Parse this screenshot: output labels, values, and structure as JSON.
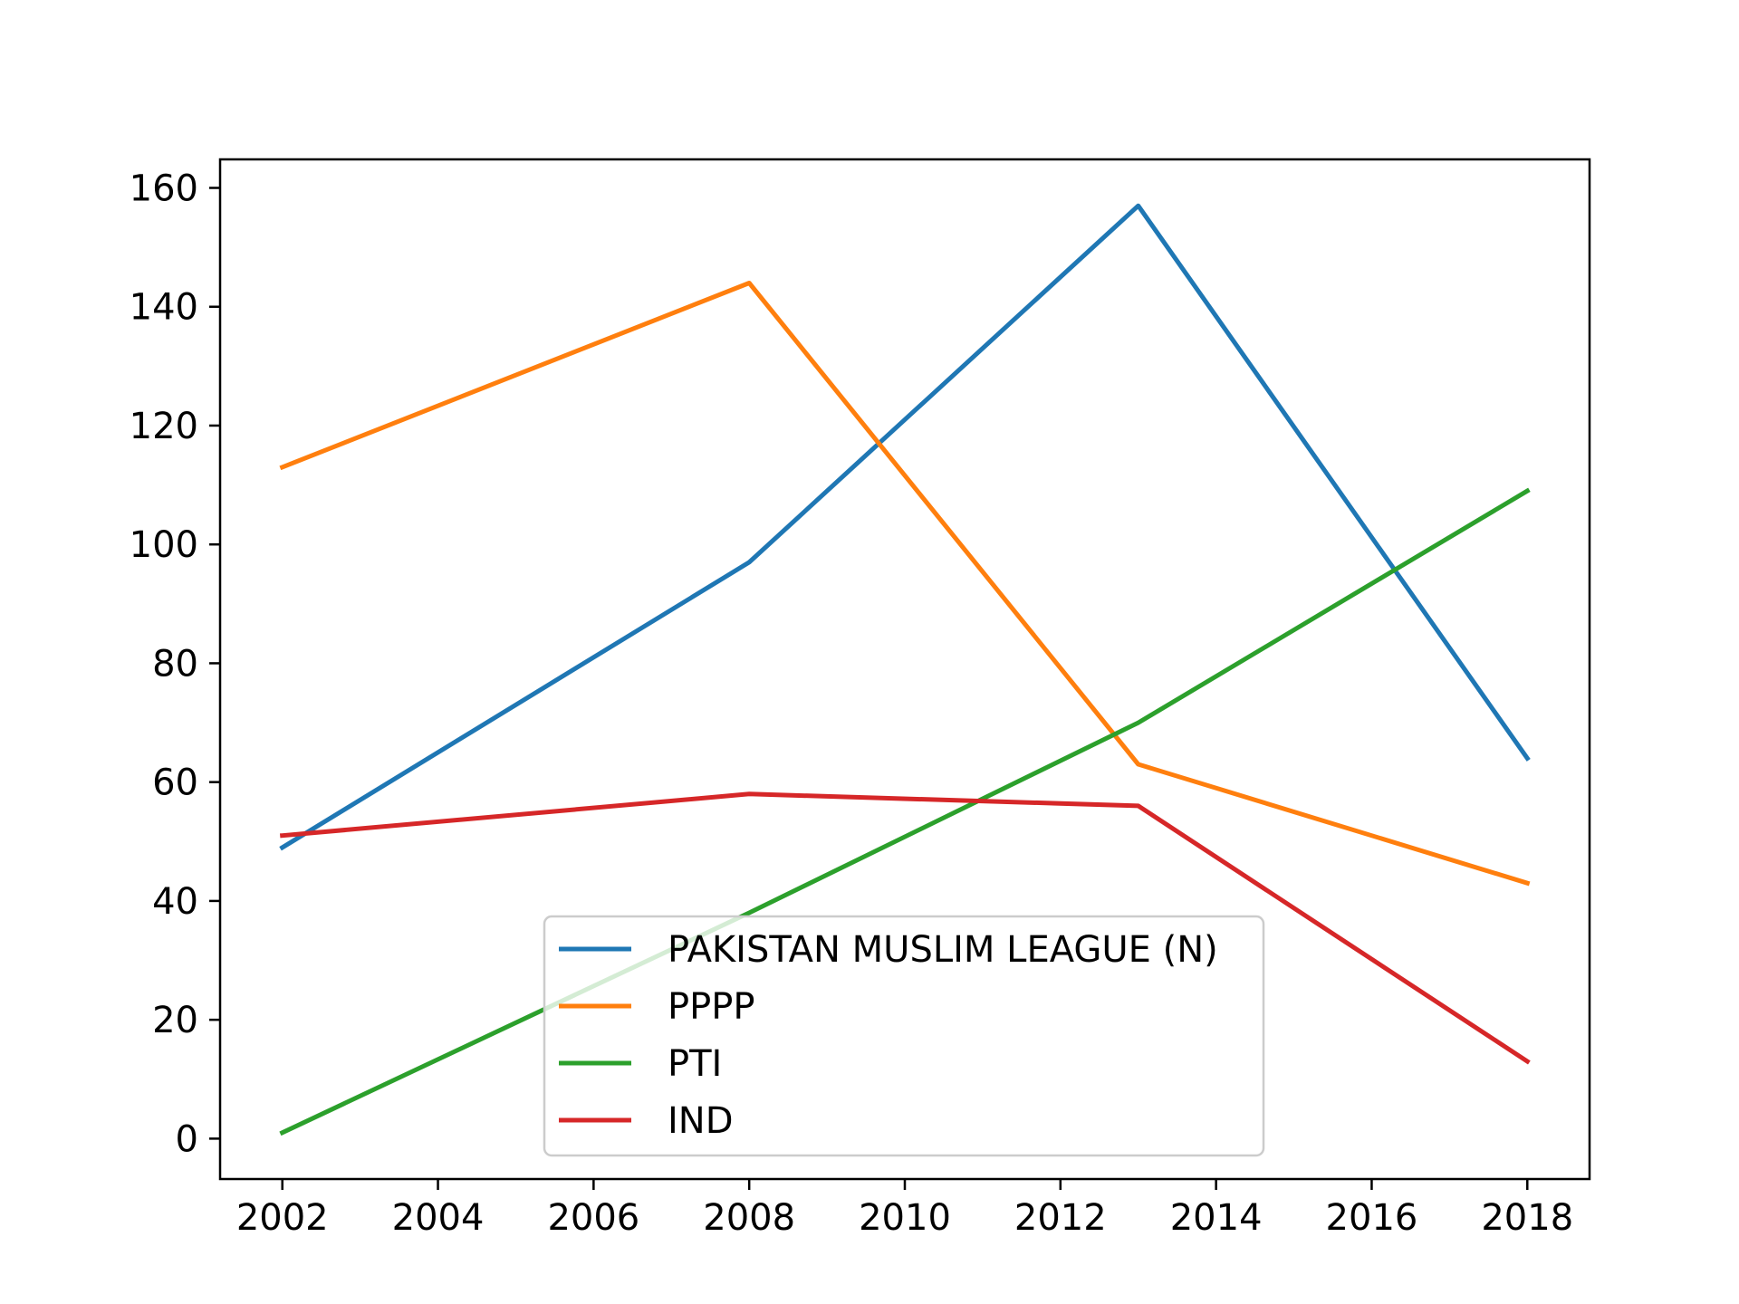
{
  "chart_data": {
    "type": "line",
    "title": "",
    "xlabel": "",
    "ylabel": "",
    "x": [
      2002,
      2008,
      2013,
      2018
    ],
    "xlim": [
      2001.2,
      2018.8
    ],
    "ylim": [
      -6.8,
      164.8
    ],
    "xticks": [
      2002,
      2004,
      2006,
      2008,
      2010,
      2012,
      2014,
      2016,
      2018
    ],
    "yticks": [
      0,
      20,
      40,
      60,
      80,
      100,
      120,
      140,
      160
    ],
    "grid": false,
    "legend_position": "bottom-center",
    "series": [
      {
        "name": "PAKISTAN MUSLIM LEAGUE (N)",
        "color": "#1f77b4",
        "values": [
          49,
          97,
          157,
          64
        ]
      },
      {
        "name": "PPPP",
        "color": "#ff7f0e",
        "values": [
          113,
          144,
          63,
          43
        ]
      },
      {
        "name": "PTI",
        "color": "#2ca02c",
        "values": [
          1,
          38,
          70,
          109
        ]
      },
      {
        "name": "IND",
        "color": "#d62728",
        "values": [
          51,
          58,
          56,
          13
        ]
      }
    ]
  }
}
